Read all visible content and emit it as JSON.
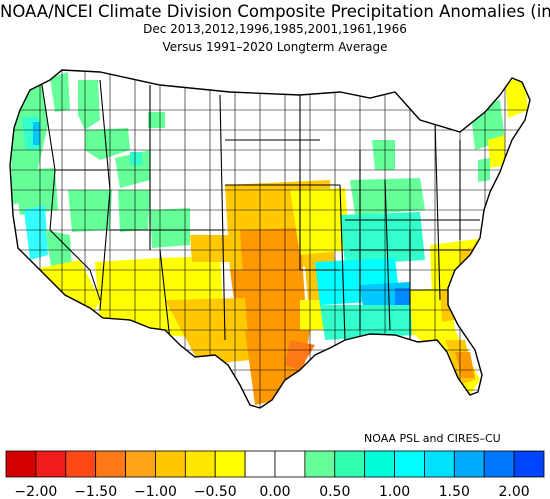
{
  "header": {
    "title": "NOAA/NCEI Climate Division Composite Precipitation Anomalies (in)",
    "subtitle": "Dec  2013,2012,1996,1985,2001,1961,1966",
    "baseline": "Versus 1991–2020 Longterm Average"
  },
  "credit": "NOAA PSL and CIRES–CU",
  "colorbar": {
    "colors": [
      "#d40000",
      "#f01b1b",
      "#ff4a17",
      "#ff7a17",
      "#ffa317",
      "#ffc800",
      "#ffe600",
      "#ffff00",
      "#ffffff",
      "#ffffff",
      "#66ff99",
      "#33ffb0",
      "#00ffd6",
      "#00ffff",
      "#00e0ff",
      "#00aaff",
      "#0077ff",
      "#0044ff"
    ],
    "tick_labels": [
      "−2.00",
      "−1.50",
      "−1.00",
      "−0.50",
      "0.00",
      "0.50",
      "1.00",
      "1.50",
      "2.00"
    ]
  },
  "map": {
    "legend_colors": {
      "dry_strong": "#ff9900",
      "dry_moderate": "#ffc800",
      "dry_light": "#ffff00",
      "near_normal": "#ffffff",
      "wet_light": "#66ff99",
      "wet_moderate": "#33ffcc",
      "wet_strong": "#00ffff",
      "wet_very": "#00c8ff",
      "wet_extreme": "#0088ff"
    }
  }
}
